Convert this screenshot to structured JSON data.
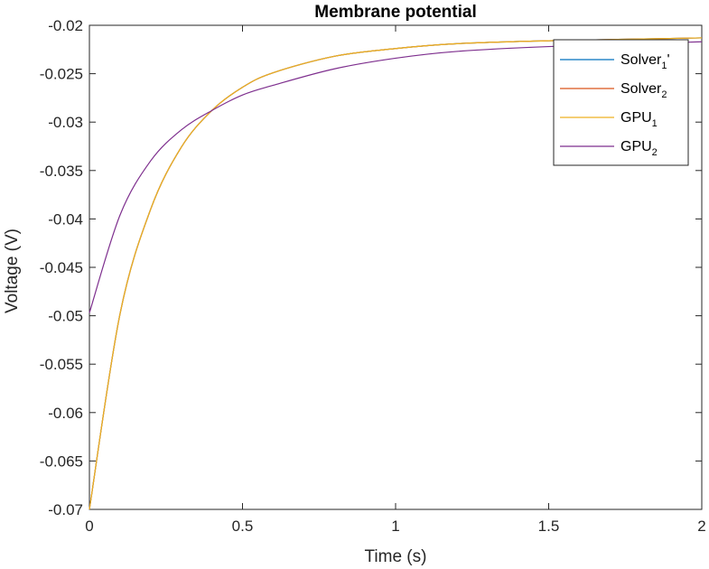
{
  "chart_data": {
    "type": "line",
    "title": "Membrane potential",
    "xlabel": "Time (s)",
    "ylabel": "Voltage (V)",
    "xlim": [
      0,
      2
    ],
    "ylim": [
      -0.07,
      -0.02
    ],
    "grid": false,
    "legend_position": "top-right",
    "x_ticks": [
      0,
      0.5,
      1,
      1.5,
      2
    ],
    "x_tick_labels": [
      "0",
      "0.5",
      "1",
      "1.5",
      "2"
    ],
    "y_ticks": [
      -0.07,
      -0.065,
      -0.06,
      -0.055,
      -0.05,
      -0.045,
      -0.04,
      -0.035,
      -0.03,
      -0.025,
      -0.02
    ],
    "y_tick_labels": [
      "-0.07",
      "-0.065",
      "-0.06",
      "-0.055",
      "-0.05",
      "-0.045",
      "-0.04",
      "-0.035",
      "-0.03",
      "-0.025",
      "-0.02"
    ],
    "series": [
      {
        "name": "Solver1'",
        "legend_main": "Solver",
        "legend_sub": "1",
        "legend_suffix": "'",
        "color": "#0072BD",
        "x": [
          0,
          0.1,
          0.2,
          0.3,
          0.4,
          0.5,
          0.6,
          0.8,
          1.0,
          1.2,
          1.5,
          2.0
        ],
        "y": [
          -0.07,
          -0.0498,
          -0.039,
          -0.0326,
          -0.0288,
          -0.0264,
          -0.0249,
          -0.0232,
          -0.0224,
          -0.0219,
          -0.0216,
          -0.0213
        ]
      },
      {
        "name": "Solver2",
        "legend_main": "Solver",
        "legend_sub": "2",
        "legend_suffix": "",
        "color": "#D95319",
        "x": [
          0,
          0.1,
          0.2,
          0.3,
          0.4,
          0.5,
          0.6,
          0.8,
          1.0,
          1.2,
          1.5,
          2.0
        ],
        "y": [
          -0.07,
          -0.0498,
          -0.039,
          -0.0326,
          -0.0288,
          -0.0264,
          -0.0249,
          -0.0232,
          -0.0224,
          -0.0219,
          -0.0216,
          -0.0213
        ]
      },
      {
        "name": "GPU1",
        "legend_main": "GPU",
        "legend_sub": "1",
        "legend_suffix": "",
        "color": "#EDB120",
        "x": [
          0,
          0.1,
          0.2,
          0.3,
          0.4,
          0.5,
          0.6,
          0.8,
          1.0,
          1.2,
          1.5,
          2.0
        ],
        "y": [
          -0.07,
          -0.0498,
          -0.039,
          -0.0326,
          -0.0288,
          -0.0264,
          -0.0249,
          -0.0232,
          -0.0224,
          -0.0219,
          -0.0216,
          -0.0213
        ]
      },
      {
        "name": "GPU2",
        "legend_main": "GPU",
        "legend_sub": "2",
        "legend_suffix": "",
        "color": "#7E2F8E",
        "x": [
          0,
          0.1,
          0.2,
          0.3,
          0.4,
          0.5,
          0.6,
          0.8,
          1.0,
          1.2,
          1.5,
          2.0
        ],
        "y": [
          -0.0497,
          -0.0396,
          -0.034,
          -0.0308,
          -0.0288,
          -0.0272,
          -0.0262,
          -0.0245,
          -0.0234,
          -0.0227,
          -0.0222,
          -0.0217
        ]
      }
    ]
  }
}
